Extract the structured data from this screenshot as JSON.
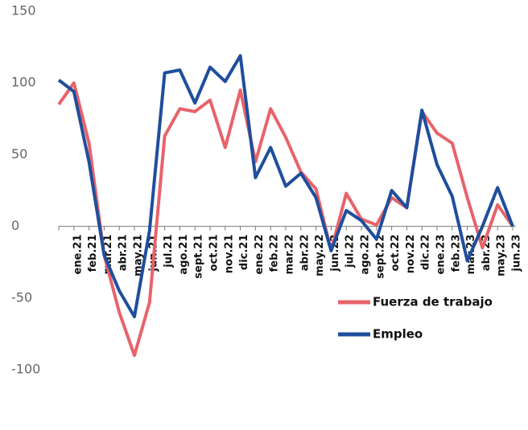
{
  "chart_data": {
    "type": "line",
    "categories": [
      null,
      "ene.21",
      "feb.21",
      "mar.21",
      "abr.21",
      "may.21",
      "jun.21",
      "jul.21",
      "ago.21",
      "sept.21",
      "oct.21",
      "nov.21",
      "dic.21",
      "ene.22",
      "feb.22",
      "mar.22",
      "abr.22",
      "may.22",
      "jun.22",
      "jul.22",
      "ago.22",
      "sept.22",
      "oct.22",
      "nov.22",
      "dic.22",
      "ene.23",
      "feb.23",
      "mar.23",
      "abr.23",
      "may.23",
      "jun.23"
    ],
    "series": [
      {
        "name": "Fuerza de trabajo",
        "color": "#e8636a",
        "values": [
          85,
          100,
          58,
          -20,
          -60,
          -90,
          -53,
          63,
          82,
          80,
          88,
          55,
          95,
          45,
          82,
          62,
          38,
          26,
          -17,
          23,
          5,
          1,
          20,
          13,
          80,
          65,
          58,
          20,
          -15,
          15,
          0
        ]
      },
      {
        "name": "Empleo",
        "color": "#1f4e9c",
        "values": [
          102,
          94,
          45,
          -20,
          -45,
          -63,
          -3,
          107,
          109,
          86,
          111,
          101,
          119,
          34,
          55,
          28,
          37,
          20,
          -17,
          11,
          4,
          -9,
          25,
          13,
          81,
          43,
          21,
          -24,
          0,
          27,
          0
        ]
      }
    ],
    "ylim": [
      -100,
      150
    ],
    "yticks": [
      -100,
      -50,
      0,
      50,
      100,
      150
    ],
    "legend": "lower right"
  }
}
